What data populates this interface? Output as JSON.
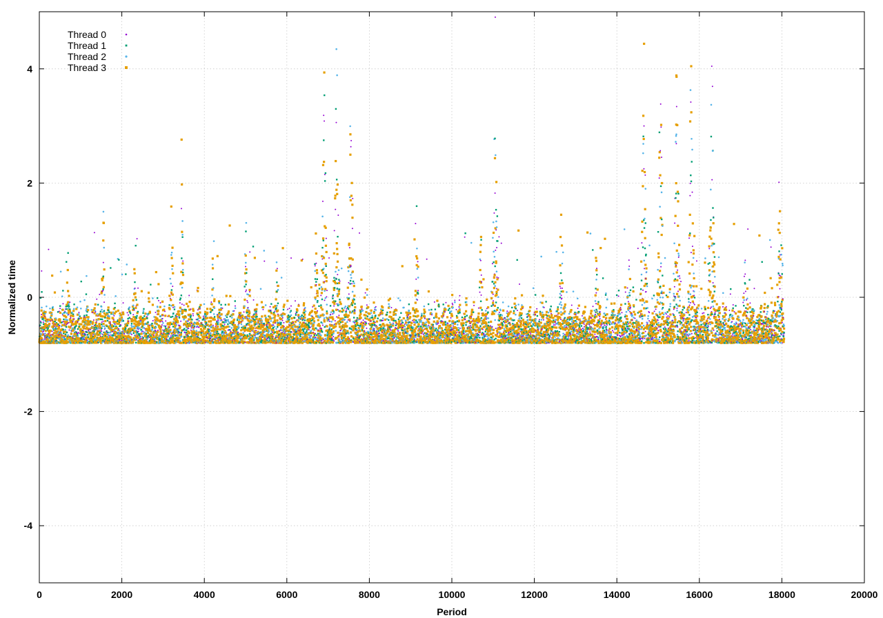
{
  "chart_data": {
    "type": "scatter",
    "title": "",
    "xlabel": "Period",
    "ylabel": "Normalized time",
    "xlim": [
      0,
      20000
    ],
    "ylim": [
      -5,
      5
    ],
    "x_ticks": [
      0,
      2000,
      4000,
      6000,
      8000,
      10000,
      12000,
      14000,
      16000,
      18000,
      20000
    ],
    "x_tick_labels": [
      "0",
      "2000",
      "4000",
      "6000",
      "8000",
      "10000",
      "12000",
      "14000",
      "16000",
      "18000",
      "20000"
    ],
    "y_ticks": [
      -4,
      -2,
      0,
      2,
      4
    ],
    "y_tick_labels": [
      "-4",
      "-2",
      "0",
      "2",
      "4"
    ],
    "grid": true,
    "legend_position": "top-left",
    "x_range": [
      0,
      18050
    ],
    "series": [
      {
        "name": "Thread 0",
        "color": "#9400d3",
        "marker": "dot"
      },
      {
        "name": "Thread 1",
        "color": "#009e73",
        "marker": "cross"
      },
      {
        "name": "Thread 2",
        "color": "#56b4e9",
        "marker": "star"
      },
      {
        "name": "Thread 3",
        "color": "#e69f00",
        "marker": "square"
      }
    ],
    "baseline_range": [
      -0.75,
      -0.45
    ],
    "bursts": [
      {
        "x": 700,
        "peak": 1.0
      },
      {
        "x": 1550,
        "peak": 2.3
      },
      {
        "x": 2300,
        "peak": 0.6
      },
      {
        "x": 3200,
        "peak": 2.5
      },
      {
        "x": 3450,
        "peak": 2.8
      },
      {
        "x": 4200,
        "peak": 0.5
      },
      {
        "x": 5000,
        "peak": 1.6
      },
      {
        "x": 5750,
        "peak": 0.6
      },
      {
        "x": 6700,
        "peak": 1.5
      },
      {
        "x": 6900,
        "peak": 4.2
      },
      {
        "x": 7200,
        "peak": 5.0
      },
      {
        "x": 7550,
        "peak": 3.8
      },
      {
        "x": 9150,
        "peak": 1.6
      },
      {
        "x": 10700,
        "peak": 1.2
      },
      {
        "x": 11050,
        "peak": 4.8
      },
      {
        "x": 12650,
        "peak": 2.3
      },
      {
        "x": 13500,
        "peak": 0.8
      },
      {
        "x": 14300,
        "peak": 1.2
      },
      {
        "x": 14650,
        "peak": 5.0
      },
      {
        "x": 15050,
        "peak": 5.0
      },
      {
        "x": 15450,
        "peak": 5.0
      },
      {
        "x": 15800,
        "peak": 5.0
      },
      {
        "x": 16300,
        "peak": 5.0
      },
      {
        "x": 17100,
        "peak": 0.6
      },
      {
        "x": 17950,
        "peak": 3.3
      }
    ]
  }
}
